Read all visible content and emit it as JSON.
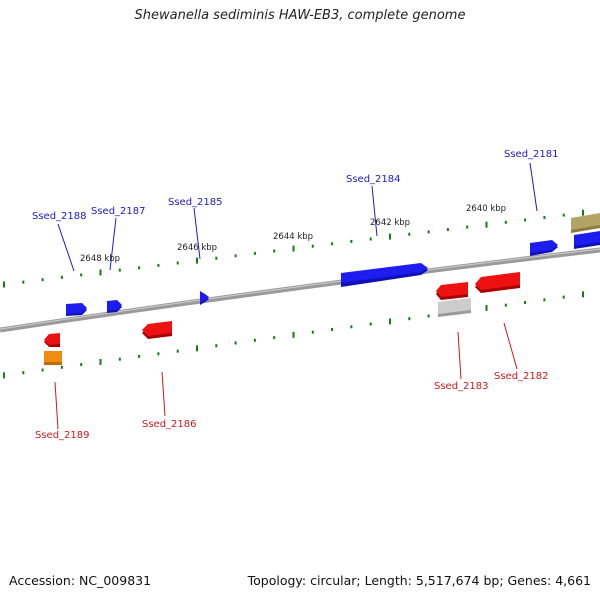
{
  "title": "Shewanella sediminis HAW-EB3, complete genome",
  "footer": {
    "accession": "Accession: NC_009831",
    "summary": "Topology: circular; Length: 5,517,674 bp; Genes: 4,661"
  },
  "scale_labels": [
    "2648 kbp",
    "2646 kbp",
    "2644 kbp",
    "2642 kbp",
    "2640 kbp"
  ],
  "genes_forward": [
    "Ssed_2188",
    "Ssed_2187",
    "Ssed_2185",
    "Ssed_2184",
    "Ssed_2181"
  ],
  "genes_reverse": [
    "Ssed_2189",
    "Ssed_2186",
    "Ssed_2183",
    "Ssed_2182"
  ],
  "colors": {
    "forward_gene": "#0000ee",
    "reverse_gene": "#ee0000",
    "forward_label": "#1a1acc",
    "reverse_label": "#cc1a1a",
    "tick": "#1a7a1a",
    "backbone": "#888888",
    "pseudo_gene": "#bbbbbb",
    "orange_gene": "#ee8800",
    "olive_gene": "#a89a55"
  }
}
